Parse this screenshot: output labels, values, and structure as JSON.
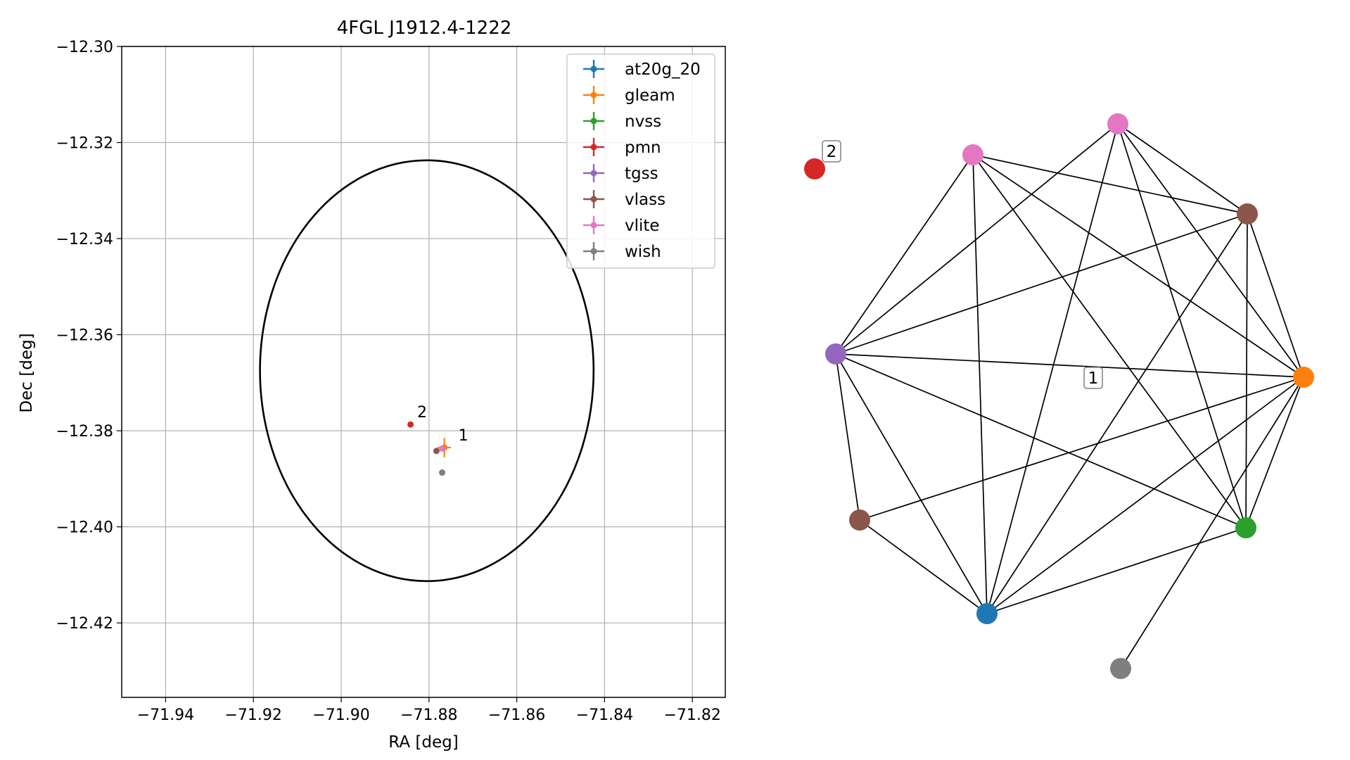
{
  "chart_data": [
    {
      "type": "scatter",
      "title": "4FGL J1912.4-1222",
      "xlabel": "RA [deg]",
      "ylabel": "Dec [deg]",
      "xlim": [
        -71.95,
        -71.8125
      ],
      "ylim": [
        -12.4355,
        -12.3
      ],
      "x_ticks": [
        -71.94,
        -71.92,
        -71.9,
        -71.88,
        -71.86,
        -71.84,
        -71.82
      ],
      "x_tick_labels": [
        "−71.94",
        "−71.92",
        "−71.90",
        "−71.88",
        "−71.86",
        "−71.84",
        "−71.82"
      ],
      "y_ticks": [
        -12.3,
        -12.32,
        -12.34,
        -12.36,
        -12.38,
        -12.4,
        -12.42
      ],
      "y_tick_labels": [
        "−12.30",
        "−12.32",
        "−12.34",
        "−12.36",
        "−12.38",
        "−12.40",
        "−12.42"
      ],
      "grid": true,
      "legend_position": "top-right",
      "ellipse": {
        "center": [
          -71.8805,
          -12.3675
        ],
        "semi_axis_ra": 0.038,
        "semi_axis_dec": 0.0438,
        "color": "#000000"
      },
      "series": [
        {
          "name": "at20g_20",
          "color": "#1f77b4",
          "points": []
        },
        {
          "name": "gleam",
          "color": "#ff7f0e",
          "points": [
            {
              "x": -71.8765,
              "y": -12.3835,
              "xerr": 0.0015,
              "yerr": 0.002
            }
          ]
        },
        {
          "name": "nvss",
          "color": "#2ca02c",
          "points": []
        },
        {
          "name": "pmn",
          "color": "#d62728",
          "points": [
            {
              "x": -71.8842,
              "y": -12.3787
            }
          ]
        },
        {
          "name": "tgss",
          "color": "#9467bd",
          "points": []
        },
        {
          "name": "vlass",
          "color": "#8c564b",
          "points": [
            {
              "x": -71.8783,
              "y": -12.3842
            }
          ]
        },
        {
          "name": "vlite",
          "color": "#e377c2",
          "points": [
            {
              "x": -71.877,
              "y": -12.3837
            }
          ]
        },
        {
          "name": "wish",
          "color": "#7f7f7f",
          "points": [
            {
              "x": -71.877,
              "y": -12.3887
            }
          ]
        }
      ],
      "annotations": [
        {
          "text": "2",
          "x": -71.8827,
          "y": -12.3772
        },
        {
          "text": "1",
          "x": -71.8733,
          "y": -12.382
        }
      ]
    },
    {
      "type": "network",
      "nodes": [
        {
          "id": "at20g_20",
          "color": "#1f77b4"
        },
        {
          "id": "gleam",
          "color": "#ff7f0e"
        },
        {
          "id": "nvss",
          "color": "#2ca02c"
        },
        {
          "id": "pmn",
          "color": "#d62728"
        },
        {
          "id": "tgss",
          "color": "#9467bd"
        },
        {
          "id": "vlass_a",
          "color": "#8c564b"
        },
        {
          "id": "vlass_b",
          "color": "#8c564b"
        },
        {
          "id": "vlite_a",
          "color": "#e377c2"
        },
        {
          "id": "vlite_b",
          "color": "#e377c2"
        },
        {
          "id": "wish",
          "color": "#7f7f7f"
        }
      ],
      "edges": [
        [
          "tgss",
          "vlite_a"
        ],
        [
          "tgss",
          "vlite_b"
        ],
        [
          "tgss",
          "vlass_a"
        ],
        [
          "tgss",
          "gleam"
        ],
        [
          "tgss",
          "vlass_b"
        ],
        [
          "tgss",
          "at20g_20"
        ],
        [
          "tgss",
          "nvss"
        ],
        [
          "vlite_a",
          "vlass_a"
        ],
        [
          "vlite_a",
          "gleam"
        ],
        [
          "vlite_a",
          "nvss"
        ],
        [
          "vlite_a",
          "at20g_20"
        ],
        [
          "vlite_b",
          "vlass_a"
        ],
        [
          "vlite_b",
          "gleam"
        ],
        [
          "vlite_b",
          "nvss"
        ],
        [
          "vlite_b",
          "at20g_20"
        ],
        [
          "vlass_a",
          "gleam"
        ],
        [
          "vlass_a",
          "nvss"
        ],
        [
          "vlass_a",
          "at20g_20"
        ],
        [
          "gleam",
          "nvss"
        ],
        [
          "gleam",
          "at20g_20"
        ],
        [
          "gleam",
          "vlass_b"
        ],
        [
          "gleam",
          "wish"
        ],
        [
          "nvss",
          "at20g_20"
        ],
        [
          "vlass_b",
          "at20g_20"
        ]
      ],
      "labels": [
        {
          "text": "1",
          "group": "main"
        },
        {
          "text": "2",
          "group": "pmn"
        }
      ]
    }
  ]
}
